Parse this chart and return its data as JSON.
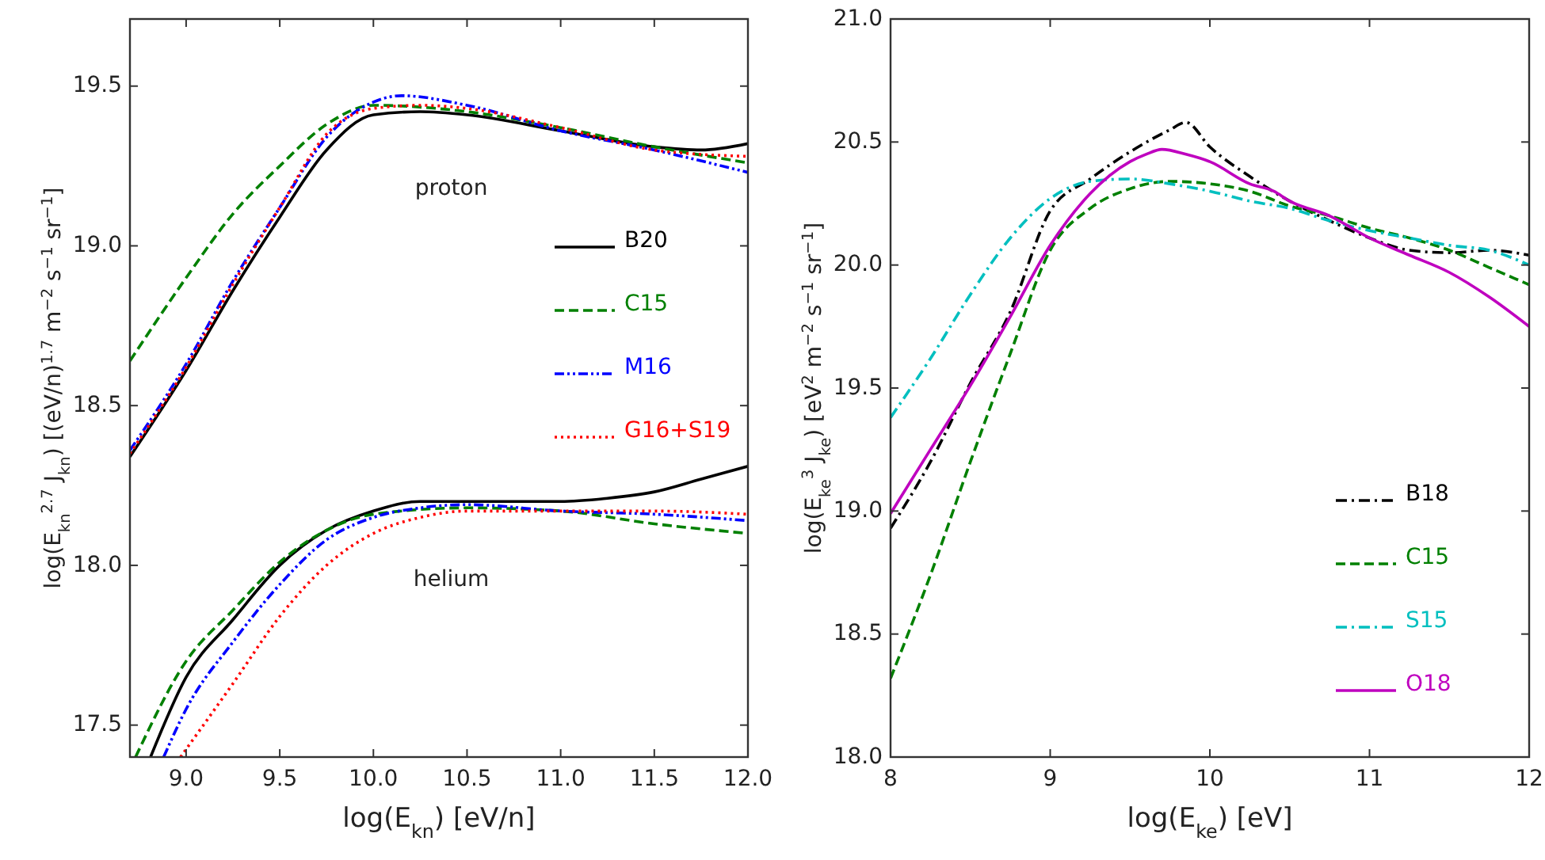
{
  "chart_data": [
    {
      "type": "line",
      "xlabel": "log(E$_{kn}$) [eV/n]",
      "ylabel": "log(E$_{kn}$$^{2.7}$ J$_{kn}$) [(eV/n)$^{1.7}$ m$^{−2}$ s$^{−1}$ sr$^{−1}$]",
      "xlim": [
        8.7,
        12.0
      ],
      "ylim": [
        17.4,
        19.71
      ],
      "xticks": [
        {
          "value": 9,
          "label": "9.0"
        },
        {
          "value": 9.5,
          "label": "9.5"
        },
        {
          "value": 10,
          "label": "10.0"
        },
        {
          "value": 10.5,
          "label": "10.5"
        },
        {
          "value": 11,
          "label": "11.0"
        },
        {
          "value": 11.5,
          "label": "11.5"
        },
        {
          "value": 12,
          "label": "12.0"
        }
      ],
      "yticks": [
        {
          "value": 17.5,
          "label": "17.5"
        },
        {
          "value": 18,
          "label": "18.0"
        },
        {
          "value": 18.5,
          "label": "18.5"
        },
        {
          "value": 19,
          "label": "19.0"
        },
        {
          "value": 19.5,
          "label": "19.5"
        }
      ],
      "legend": "right",
      "annotations": [
        "proton",
        "helium"
      ],
      "series": [
        {
          "name": "B20",
          "color": "#000000",
          "line_style": "solid",
          "x": [
            8.7,
            9.0,
            9.25,
            9.5,
            9.75,
            10.0,
            10.25,
            10.5,
            11.0,
            11.5,
            11.75,
            12.0
          ],
          "values": [
            18.34,
            18.61,
            18.86,
            19.09,
            19.3,
            19.41,
            19.42,
            19.41,
            19.36,
            19.31,
            19.3,
            19.32
          ]
        },
        {
          "name": "C15",
          "color": "#008000",
          "line_style": "dashed",
          "x": [
            8.7,
            9.0,
            9.25,
            9.5,
            9.75,
            10.0,
            10.5,
            11.0,
            11.5,
            12.0
          ],
          "values": [
            18.64,
            18.9,
            19.1,
            19.25,
            19.38,
            19.44,
            19.42,
            19.37,
            19.31,
            19.26
          ]
        },
        {
          "name": "M16",
          "color": "#0000ff",
          "line_style": "dashdotdot",
          "x": [
            8.7,
            9.0,
            9.25,
            9.5,
            9.75,
            10.0,
            10.15,
            10.5,
            11.0,
            11.5,
            12.0
          ],
          "values": [
            18.36,
            18.63,
            18.89,
            19.12,
            19.34,
            19.45,
            19.47,
            19.44,
            19.36,
            19.3,
            19.23
          ]
        },
        {
          "name": "G16+S19",
          "color": "#ff0000",
          "line_style": "dotted",
          "x": [
            8.7,
            9.0,
            9.25,
            9.5,
            9.75,
            10.0,
            10.25,
            10.5,
            11.0,
            11.5,
            12.0
          ],
          "values": [
            18.35,
            18.62,
            18.88,
            19.12,
            19.35,
            19.43,
            19.44,
            19.43,
            19.37,
            19.3,
            19.28
          ]
        },
        {
          "color": "#000000",
          "line_style": "solid",
          "x": [
            8.81,
            9.0,
            9.25,
            9.5,
            9.75,
            10.0,
            10.25,
            10.5,
            10.75,
            11.0,
            11.25,
            11.5,
            11.75,
            12.0
          ],
          "values": [
            17.4,
            17.65,
            17.83,
            18.0,
            18.11,
            18.17,
            18.2,
            18.2,
            18.2,
            18.2,
            18.21,
            18.23,
            18.27,
            18.31
          ]
        },
        {
          "color": "#008000",
          "line_style": "dashed",
          "x": [
            8.73,
            9.0,
            9.25,
            9.5,
            9.75,
            10.0,
            10.5,
            11.0,
            11.5,
            12.0
          ],
          "values": [
            17.4,
            17.7,
            17.86,
            18.01,
            18.11,
            18.16,
            18.18,
            18.17,
            18.13,
            18.1
          ]
        },
        {
          "color": "#0000ff",
          "line_style": "dashdotdot",
          "x": [
            8.88,
            9.0,
            9.25,
            9.5,
            9.75,
            10.0,
            10.25,
            10.5,
            11.0,
            11.5,
            12.0
          ],
          "values": [
            17.4,
            17.55,
            17.76,
            17.94,
            18.08,
            18.15,
            18.18,
            18.19,
            18.17,
            18.16,
            18.14
          ]
        },
        {
          "color": "#ff0000",
          "line_style": "dotted",
          "x": [
            8.97,
            9.25,
            9.5,
            9.75,
            10.0,
            10.25,
            10.5,
            11.0,
            11.5,
            12.0
          ],
          "values": [
            17.4,
            17.63,
            17.84,
            18.0,
            18.1,
            18.15,
            18.17,
            18.17,
            18.17,
            18.16
          ]
        }
      ]
    },
    {
      "type": "line",
      "xlabel": "log(E$_{ke}$) [eV]",
      "ylabel": "log(E$_{ke}$$^{3}$ J$_{ke}$) [eV$^{2}$ m$^{−2}$ s$^{−1}$ sr$^{−1}$]",
      "xlim": [
        8,
        12
      ],
      "ylim": [
        18,
        21
      ],
      "xticks": [
        8,
        9,
        10,
        11,
        12
      ],
      "yticks": [
        {
          "value": 18,
          "label": "18.0"
        },
        {
          "value": 18.5,
          "label": "18.5"
        },
        {
          "value": 19,
          "label": "19.0"
        },
        {
          "value": 19.5,
          "label": "19.5"
        },
        {
          "value": 20,
          "label": "20.0"
        },
        {
          "value": 20.5,
          "label": "20.5"
        },
        {
          "value": 21,
          "label": "21.0"
        }
      ],
      "legend": "bottom right",
      "series": [
        {
          "name": "B18",
          "color": "#000000",
          "line_style": "dashdot",
          "x": [
            8.0,
            8.25,
            8.5,
            8.75,
            9.0,
            9.25,
            9.5,
            9.75,
            9.85,
            10.0,
            10.25,
            10.5,
            10.75,
            11.0,
            11.25,
            11.5,
            11.75,
            12.0
          ],
          "values": [
            18.93,
            19.2,
            19.52,
            19.81,
            20.22,
            20.35,
            20.46,
            20.55,
            20.58,
            20.48,
            20.36,
            20.26,
            20.18,
            20.11,
            20.06,
            20.05,
            20.06,
            20.04
          ]
        },
        {
          "name": "C15",
          "color": "#008000",
          "line_style": "dashed",
          "x": [
            8.0,
            8.25,
            8.5,
            8.75,
            9.0,
            9.25,
            9.5,
            9.75,
            10.0,
            10.25,
            10.5,
            10.75,
            11.0,
            11.25,
            11.5,
            11.75,
            12.0
          ],
          "values": [
            18.32,
            18.74,
            19.2,
            19.64,
            20.06,
            20.23,
            20.31,
            20.34,
            20.33,
            20.3,
            20.24,
            20.2,
            20.15,
            20.11,
            20.06,
            19.99,
            19.92
          ]
        },
        {
          "name": "S15",
          "color": "#00bfbf",
          "line_style": "dashdot",
          "x": [
            8.0,
            8.25,
            8.5,
            8.75,
            9.0,
            9.25,
            9.5,
            9.75,
            10.0,
            10.25,
            10.5,
            10.75,
            11.0,
            11.25,
            11.5,
            11.75,
            12.0
          ],
          "values": [
            19.38,
            19.62,
            19.88,
            20.11,
            20.27,
            20.34,
            20.35,
            20.33,
            20.3,
            20.26,
            20.23,
            20.18,
            20.14,
            20.11,
            20.08,
            20.06,
            20.0
          ]
        },
        {
          "name": "O18",
          "color": "#bf00bf",
          "line_style": "solid",
          "x": [
            8.0,
            8.25,
            8.5,
            8.75,
            9.0,
            9.25,
            9.5,
            9.6,
            9.7,
            9.85,
            10.0,
            10.25,
            10.4,
            10.5,
            10.75,
            11.0,
            11.25,
            11.5,
            11.75,
            12.0
          ],
          "values": [
            18.99,
            19.25,
            19.51,
            19.79,
            20.08,
            20.29,
            20.42,
            20.45,
            20.47,
            20.45,
            20.42,
            20.33,
            20.3,
            20.26,
            20.2,
            20.11,
            20.04,
            19.97,
            19.87,
            19.75
          ]
        }
      ]
    }
  ]
}
